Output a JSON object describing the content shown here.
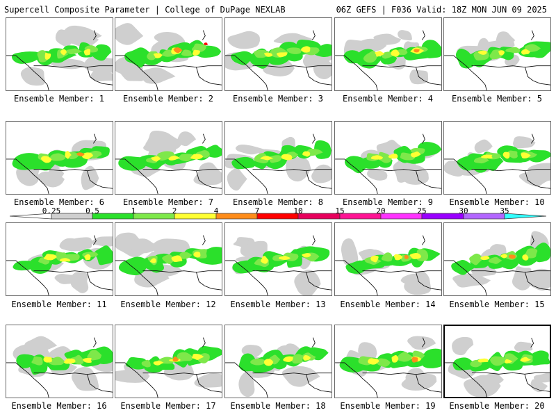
{
  "header": {
    "left_title": "Supercell Composite Parameter | College of DuPage NEXLAB",
    "right_title": "06Z GEFS | F036 Valid: 18Z MON JUN 09 2025"
  },
  "legend": {
    "labels": [
      "0.25",
      "0.5",
      "1",
      "2",
      "4",
      "7",
      "10",
      "15",
      "20",
      "25",
      "30",
      "35"
    ],
    "colors": [
      "#cfcfcf",
      "#2be02b",
      "#7ee84a",
      "#ffff33",
      "#ff8c1a",
      "#ff0000",
      "#e6005c",
      "#ff1493",
      "#ff33ff",
      "#9900ff",
      "#b266ff",
      "#33ffff"
    ]
  },
  "members": [
    {
      "label": "Ensemble Member: 1"
    },
    {
      "label": "Ensemble Member: 2"
    },
    {
      "label": "Ensemble Member: 3"
    },
    {
      "label": "Ensemble Member: 4"
    },
    {
      "label": "Ensemble Member: 5"
    },
    {
      "label": "Ensemble Member: 6"
    },
    {
      "label": "Ensemble Member: 7"
    },
    {
      "label": "Ensemble Member: 8"
    },
    {
      "label": "Ensemble Member: 9"
    },
    {
      "label": "Ensemble Member: 10"
    },
    {
      "label": "Ensemble Member: 11"
    },
    {
      "label": "Ensemble Member: 12"
    },
    {
      "label": "Ensemble Member: 13"
    },
    {
      "label": "Ensemble Member: 14"
    },
    {
      "label": "Ensemble Member: 15"
    },
    {
      "label": "Ensemble Member: 16"
    },
    {
      "label": "Ensemble Member: 17"
    },
    {
      "label": "Ensemble Member: 18"
    },
    {
      "label": "Ensemble Member: 19"
    },
    {
      "label": "Ensemble Member: 20"
    }
  ],
  "selected_member": 20
}
